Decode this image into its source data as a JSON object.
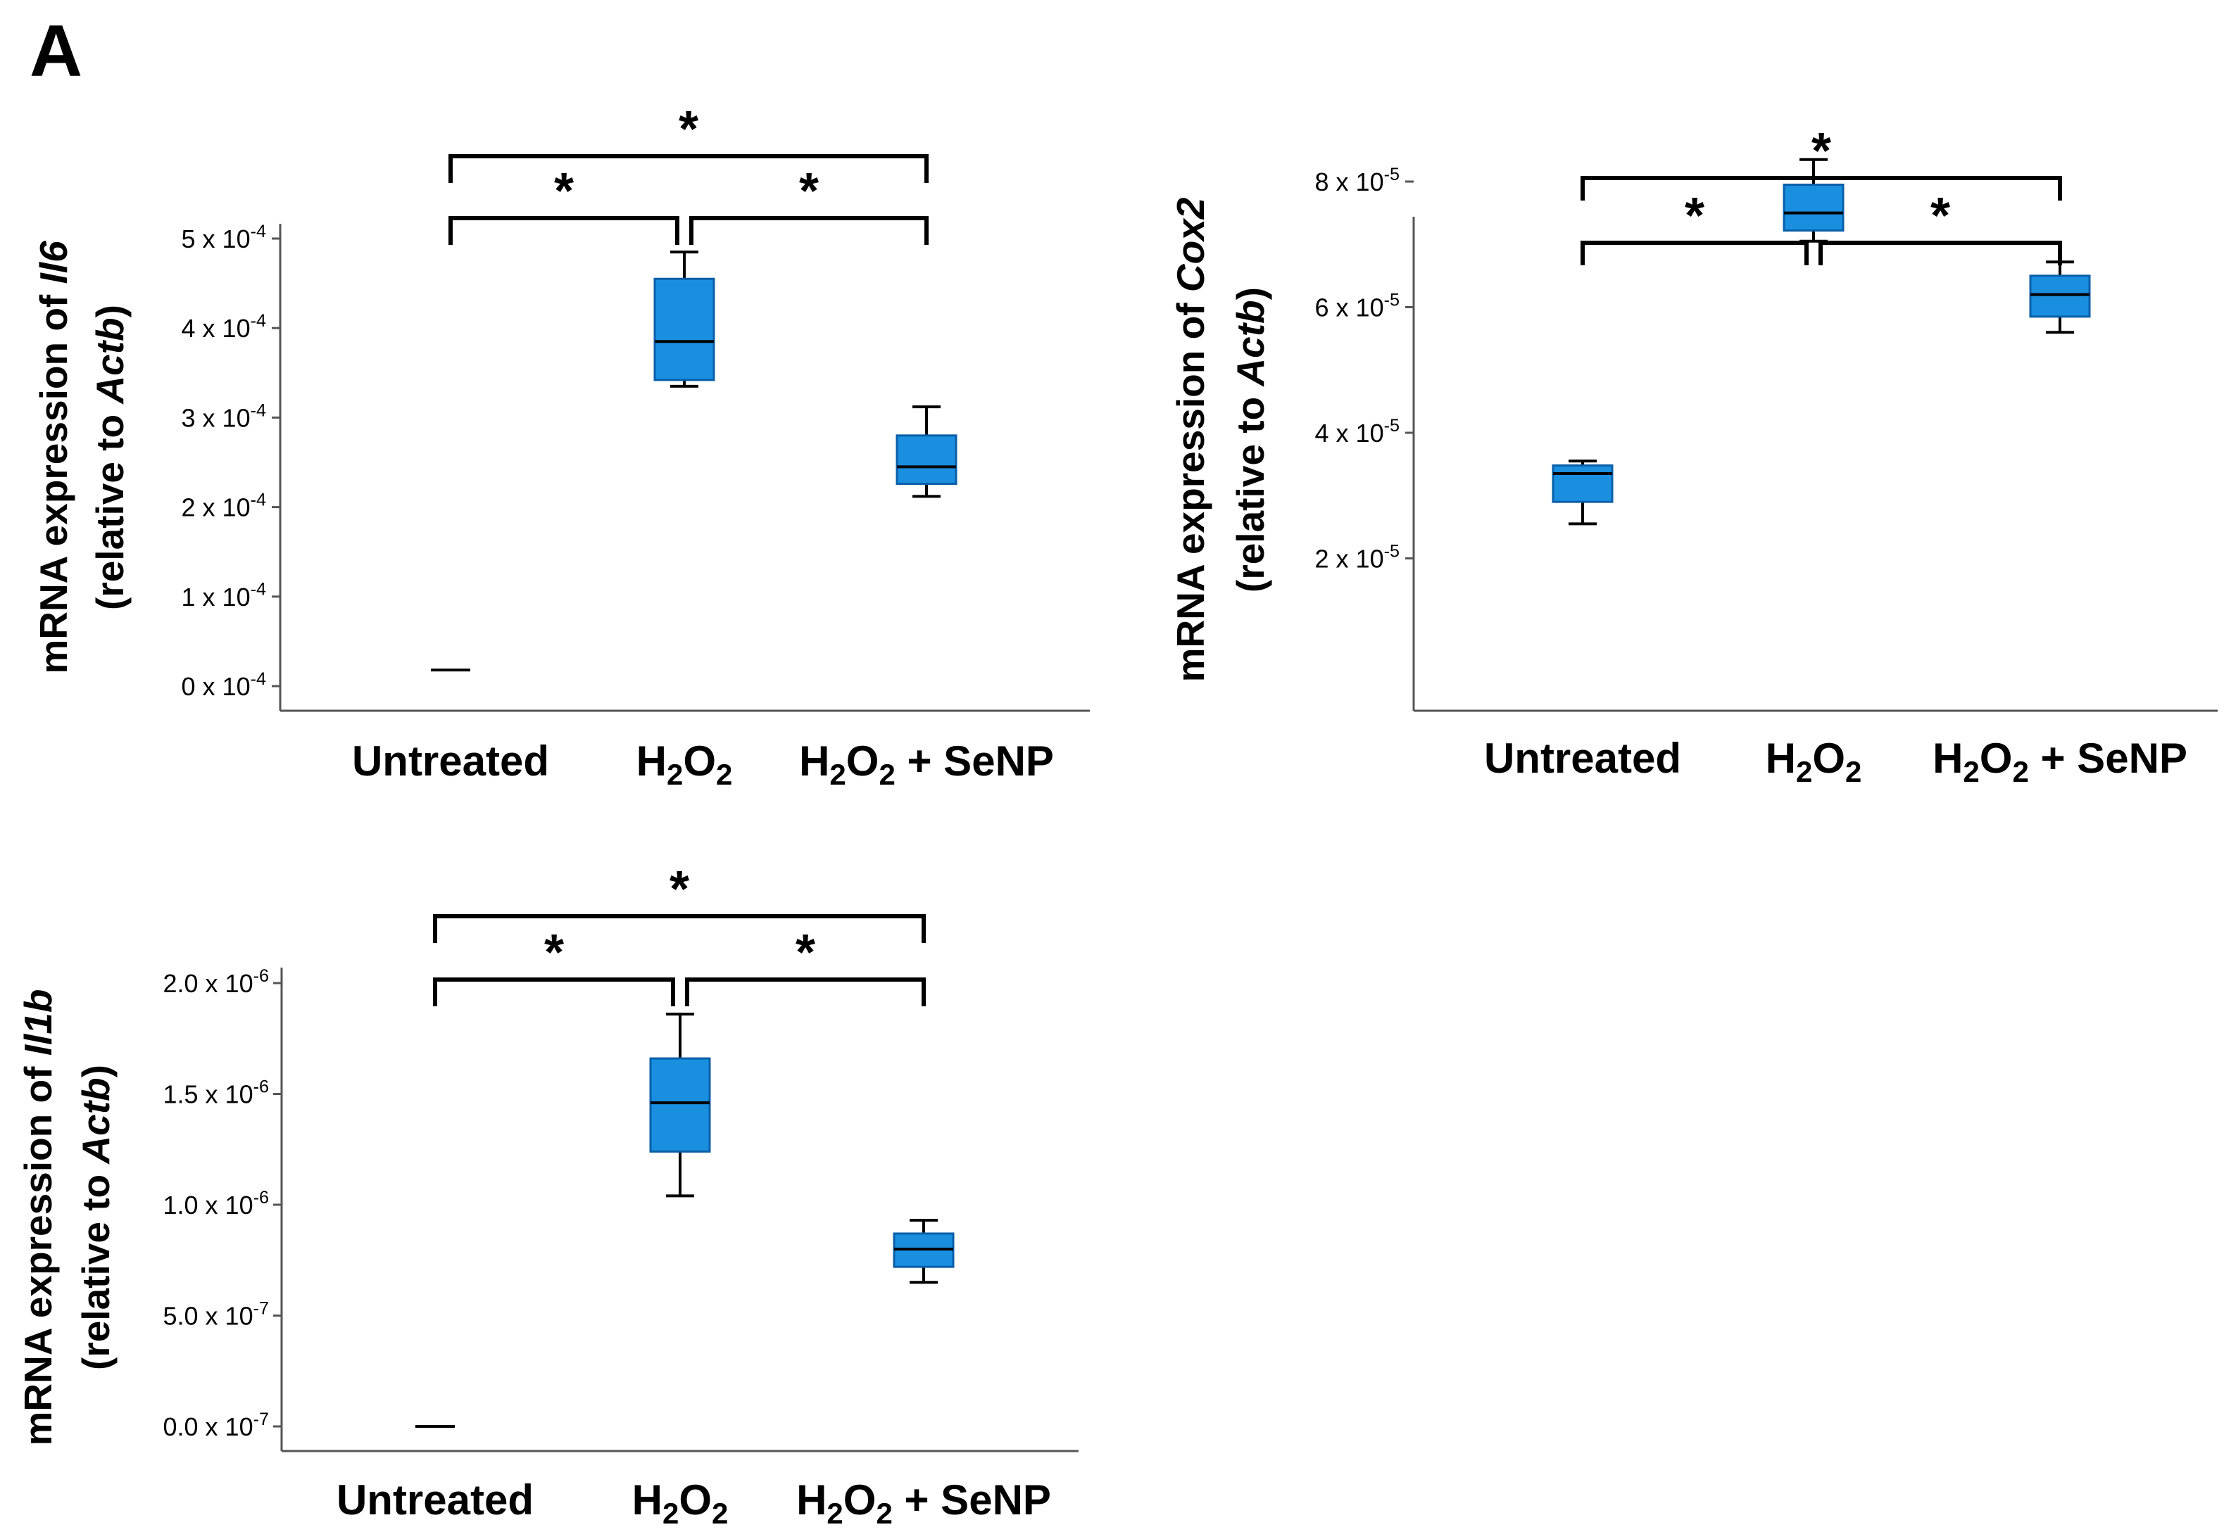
{
  "figure": {
    "panel_label": "A"
  },
  "colors": {
    "box_fill": "#1a8fe0",
    "box_stroke": "#0a5fa8",
    "line": "#000000",
    "axis_gray": "#555555"
  },
  "chart_data": [
    {
      "type": "box",
      "name": "Il6",
      "ylabel": {
        "line1_prefix": "mRNA expression of ",
        "line1_gene": "Il6",
        "line2_prefix": "(relative to ",
        "line2_gene": "Actb",
        "line2_suffix": ")"
      },
      "categories": [
        {
          "label": "Untreated"
        },
        {
          "label": "H2O2",
          "base1": "H",
          "sub1": "2",
          "base2": "O",
          "sub2": "2",
          "rest": ""
        },
        {
          "label": "H2O2 + SeNP",
          "base1": "H",
          "sub1": "2",
          "base2": "O",
          "sub2": "2",
          "rest": " + SeNP"
        }
      ],
      "y_unit_exp": -4,
      "ylim": [
        -0.1,
        5.5
      ],
      "ticks": [
        {
          "value": 0,
          "label": "0 x 10",
          "exp": "-4"
        },
        {
          "value": 1,
          "label": "1 x 10",
          "exp": "-4"
        },
        {
          "value": 2,
          "label": "2 x 10",
          "exp": "-4"
        },
        {
          "value": 3,
          "label": "3 x 10",
          "exp": "-4"
        },
        {
          "value": 4,
          "label": "4 x 10",
          "exp": "-4"
        },
        {
          "value": 5,
          "label": "5 x 10",
          "exp": "-4"
        }
      ],
      "boxes": [
        {
          "min": 0.18,
          "q1": 0.18,
          "median": 0.18,
          "q3": 0.18,
          "max": 0.18
        },
        {
          "min": 3.35,
          "q1": 3.42,
          "median": 3.85,
          "q3": 4.55,
          "max": 4.85
        },
        {
          "min": 2.12,
          "q1": 2.26,
          "median": 2.45,
          "q3": 2.8,
          "max": 3.12
        }
      ],
      "significance": [
        {
          "from": 0,
          "to": 1,
          "label": "*"
        },
        {
          "from": 1,
          "to": 2,
          "label": "*"
        },
        {
          "from": 0,
          "to": 2,
          "label": "*"
        }
      ]
    },
    {
      "type": "box",
      "name": "Cox2",
      "ylabel": {
        "line1_prefix": "mRNA expression of ",
        "line1_gene": "Cox2",
        "line2_prefix": "(relative to ",
        "line2_gene": "Actb",
        "line2_suffix": ")"
      },
      "categories": [
        {
          "label": "Untreated"
        },
        {
          "label": "H2O2",
          "base1": "H",
          "sub1": "2",
          "base2": "O",
          "sub2": "2",
          "rest": ""
        },
        {
          "label": "H2O2 + SeNP",
          "base1": "H",
          "sub1": "2",
          "base2": "O",
          "sub2": "2",
          "rest": " + SeNP"
        }
      ],
      "y_unit_exp": -5,
      "ylim": [
        1.6,
        9.4
      ],
      "ticks": [
        {
          "value": 2,
          "label": "2 x 10",
          "exp": "-5"
        },
        {
          "value": 4,
          "label": "4 x 10",
          "exp": "-5"
        },
        {
          "value": 6,
          "label": "6 x 10",
          "exp": "-5"
        },
        {
          "value": 8,
          "label": "8 x 10",
          "exp": "-5"
        }
      ],
      "boxes": [
        {
          "min": 2.55,
          "q1": 2.9,
          "median": 3.35,
          "q3": 3.48,
          "max": 3.55
        },
        {
          "min": 7.05,
          "q1": 7.22,
          "median": 7.5,
          "q3": 7.95,
          "max": 8.35
        },
        {
          "min": 5.6,
          "q1": 5.85,
          "median": 6.2,
          "q3": 6.5,
          "max": 6.72
        }
      ],
      "significance": [
        {
          "from": 0,
          "to": 1,
          "label": "*"
        },
        {
          "from": 1,
          "to": 2,
          "label": "*"
        },
        {
          "from": 0,
          "to": 2,
          "label": "*"
        }
      ]
    },
    {
      "type": "box",
      "name": "Il1b",
      "ylabel": {
        "line1_prefix": "mRNA expression of ",
        "line1_gene": "Il1b",
        "line2_prefix": "(relative to ",
        "line2_gene": "Actb",
        "line2_suffix": ")"
      },
      "categories": [
        {
          "label": "Untreated"
        },
        {
          "label": "H2O2",
          "base1": "H",
          "sub1": "2",
          "base2": "O",
          "sub2": "2",
          "rest": ""
        },
        {
          "label": "H2O2 + SeNP",
          "base1": "H",
          "sub1": "2",
          "base2": "O",
          "sub2": "2",
          "rest": " + SeNP"
        }
      ],
      "y_unit_exp": -7,
      "ylim": [
        -0.5,
        21.5
      ],
      "ticks": [
        {
          "value": 0,
          "label": "0.0 x 10",
          "exp": "-7"
        },
        {
          "value": 5,
          "label": "5.0 x 10",
          "exp": "-7"
        },
        {
          "value": 10,
          "label": "1.0 x 10",
          "exp": "-6"
        },
        {
          "value": 15,
          "label": "1.5 x 10",
          "exp": "-6"
        },
        {
          "value": 20,
          "label": "2.0 x 10",
          "exp": "-6"
        }
      ],
      "boxes": [
        {
          "min": 0.0,
          "q1": 0.0,
          "median": 0.0,
          "q3": 0.0,
          "max": 0.0
        },
        {
          "min": 10.4,
          "q1": 12.4,
          "median": 14.6,
          "q3": 16.6,
          "max": 18.6
        },
        {
          "min": 6.5,
          "q1": 7.2,
          "median": 8.0,
          "q3": 8.7,
          "max": 9.3
        }
      ],
      "significance": [
        {
          "from": 0,
          "to": 1,
          "label": "*"
        },
        {
          "from": 1,
          "to": 2,
          "label": "*"
        },
        {
          "from": 0,
          "to": 2,
          "label": "*"
        }
      ]
    }
  ]
}
